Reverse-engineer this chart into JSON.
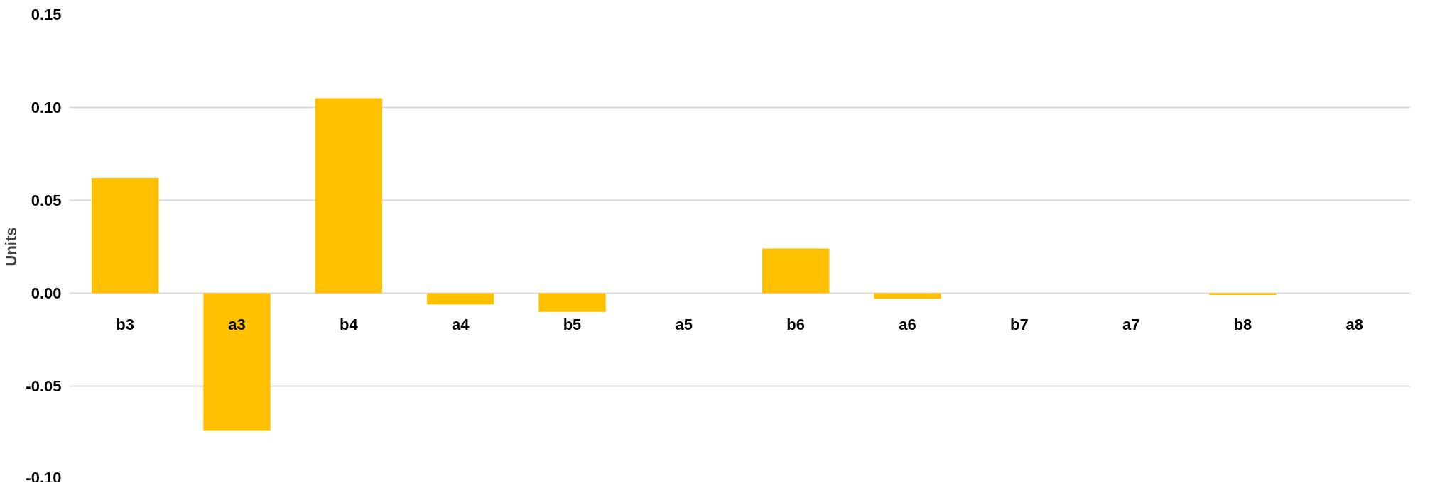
{
  "chart_data": {
    "type": "bar",
    "ylabel": "Units",
    "categories": [
      "b3",
      "a3",
      "b4",
      "a4",
      "b5",
      "a5",
      "b6",
      "a6",
      "b7",
      "a7",
      "b8",
      "a8"
    ],
    "values": [
      0.062,
      -0.074,
      0.105,
      -0.006,
      -0.01,
      0,
      0.024,
      -0.003,
      0,
      0,
      -0.001,
      0
    ],
    "color": "#ffc000",
    "ylim": [
      -0.1,
      0.15
    ],
    "yticks": [
      {
        "value": -0.1,
        "label": "-0.10"
      },
      {
        "value": -0.05,
        "label": "-0.05"
      },
      {
        "value": 0,
        "label": "0.00"
      },
      {
        "value": 0.05,
        "label": "0.05"
      },
      {
        "value": 0.1,
        "label": "0.10"
      },
      {
        "value": 0.15,
        "label": "0.15"
      }
    ],
    "grid": "y"
  }
}
